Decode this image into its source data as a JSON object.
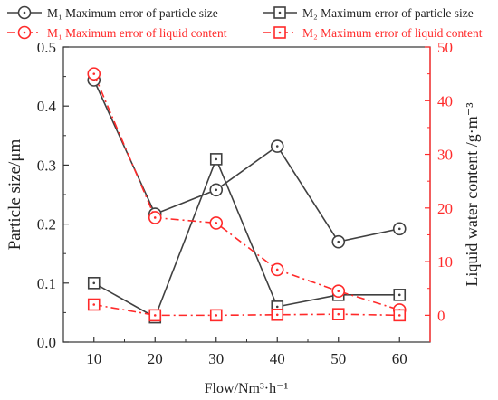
{
  "chart_data": {
    "type": "line",
    "x": [
      10,
      20,
      30,
      40,
      50,
      60
    ],
    "xlabel": "Flow/Nm³·h⁻¹",
    "ylabel_left": "Particle size/μm",
    "ylabel_right": "Liquid water content /g·m⁻³",
    "xlim": [
      5,
      65
    ],
    "ylim_left": [
      0,
      0.5
    ],
    "ylim_right": [
      -5,
      50
    ],
    "x_ticks": [
      "10",
      "20",
      "30",
      "40",
      "50",
      "60"
    ],
    "y_left_ticks": [
      "0.0",
      "0.1",
      "0.2",
      "0.3",
      "0.4",
      "0.5"
    ],
    "y_right_ticks": [
      "0",
      "10",
      "20",
      "30",
      "40",
      "50"
    ],
    "grid": false,
    "legend_position": "top",
    "series": [
      {
        "name": "M₁ Maximum error of particle size",
        "axis": "left",
        "marker": "circle",
        "style": "solid",
        "color": "#404040",
        "values": [
          0.444,
          0.217,
          0.258,
          0.332,
          0.17,
          0.192
        ]
      },
      {
        "name": "M₂ Maximum error of particle size",
        "axis": "left",
        "marker": "square",
        "style": "solid",
        "color": "#404040",
        "values": [
          0.1,
          0.042,
          0.31,
          0.06,
          0.08,
          0.08
        ]
      },
      {
        "name": "M₁ Maximum error of liquid content",
        "axis": "right",
        "marker": "circle",
        "style": "dashdot",
        "color": "#ff2a2a",
        "values": [
          45.0,
          18.2,
          17.2,
          8.5,
          4.5,
          1.0
        ]
      },
      {
        "name": "M₂ Maximum error of liquid content",
        "axis": "right",
        "marker": "square",
        "style": "dashdot",
        "color": "#ff2a2a",
        "values": [
          2.0,
          0.0,
          0.0,
          0.1,
          0.2,
          0.0
        ]
      }
    ]
  }
}
